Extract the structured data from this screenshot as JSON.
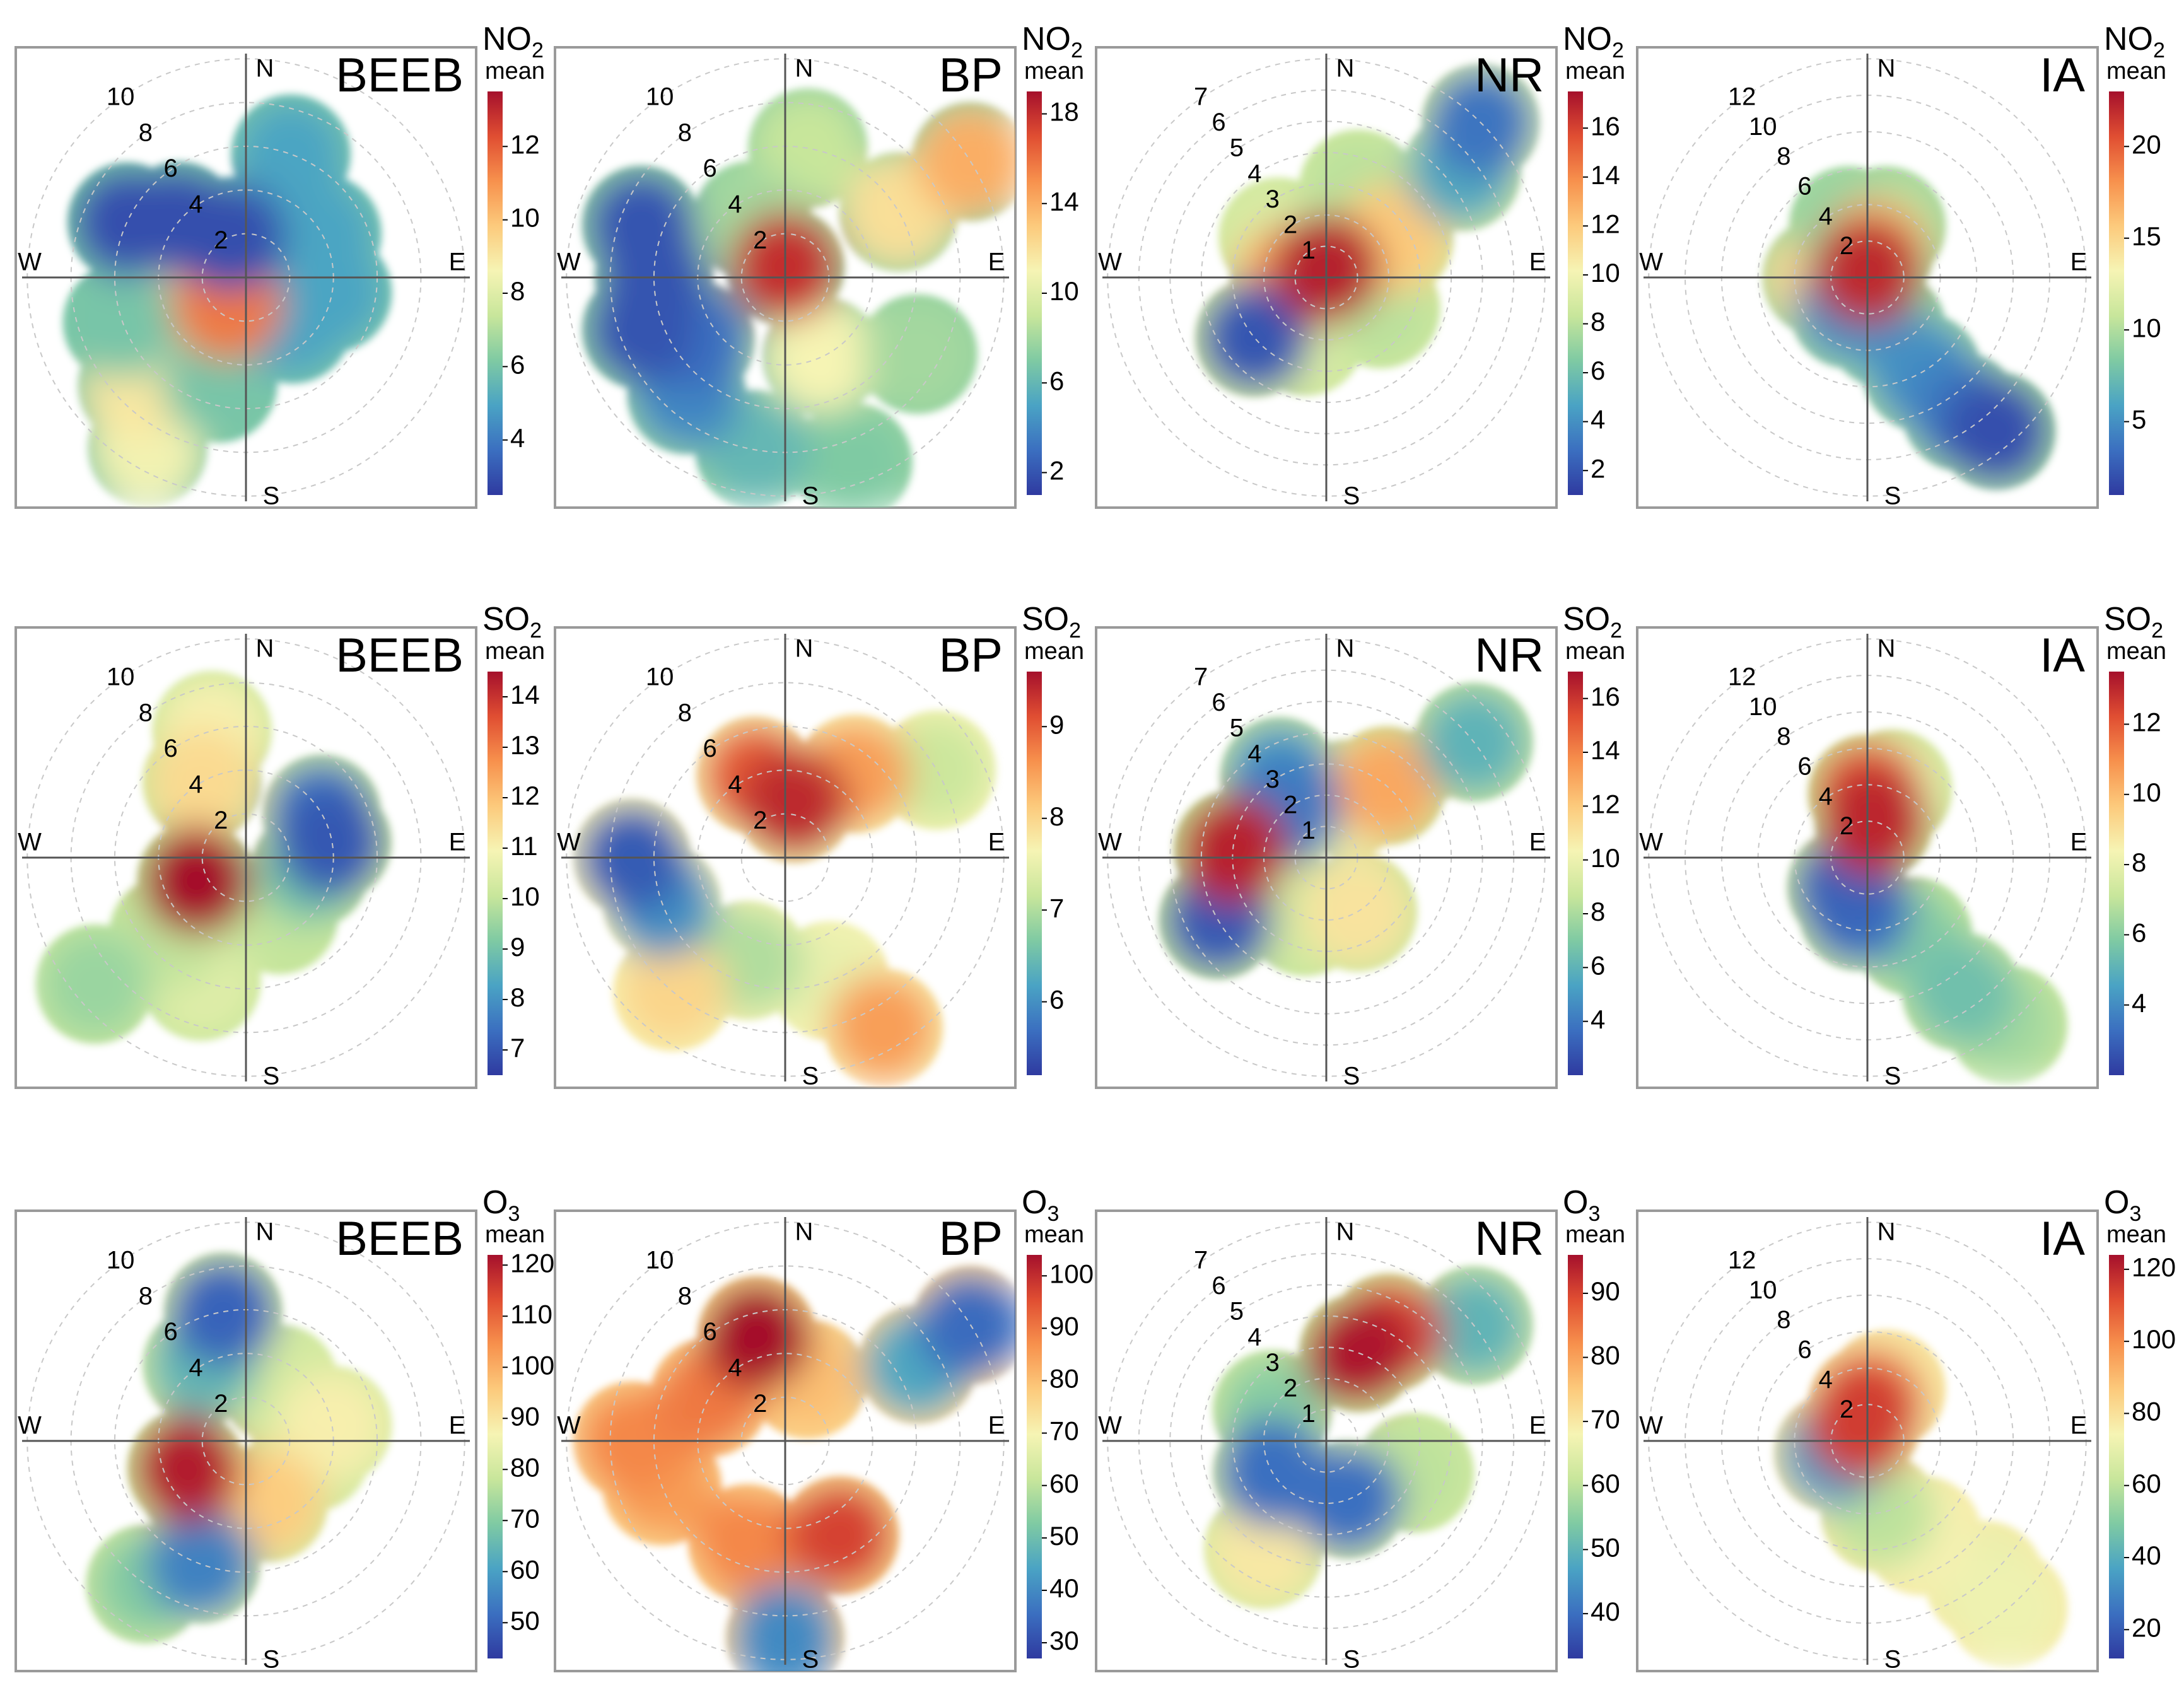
{
  "chart_data": {
    "type": "heatmap",
    "description_kind": "polar plots",
    "rows": [
      {
        "pollutant": "NO",
        "subscript": "2",
        "stat": "mean",
        "panels": [
          {
            "site": "BEEB",
            "radial_labels": [
              "2",
              "4",
              "6",
              "8",
              "10"
            ],
            "radial_max": 10,
            "colorbar_ticks": [
              4,
              6,
              8,
              10,
              12
            ],
            "colorbar_range": [
              2.5,
              13.5
            ],
            "blobs": [
              [
                215,
                1.5,
                11.5
              ],
              [
                235,
                4,
                9
              ],
              [
                225,
                7,
                9
              ],
              [
                210,
                9,
                8.5
              ],
              [
                250,
                6,
                6
              ],
              [
                195,
                5,
                6
              ],
              [
                135,
                3,
                5
              ],
              [
                100,
                4,
                5
              ],
              [
                60,
                4,
                5
              ],
              [
                20,
                6,
                5
              ],
              [
                340,
                2,
                3
              ],
              [
                310,
                4,
                3
              ],
              [
                295,
                6,
                3
              ]
            ]
          },
          {
            "site": "BP",
            "radial_labels": [
              "2",
              "4",
              "6",
              "8",
              "10"
            ],
            "radial_max": 10,
            "colorbar_ticks": [
              2,
              6,
              10,
              14,
              18
            ],
            "colorbar_range": [
              1,
              19
            ],
            "blobs": [
              [
                0,
                0.5,
                18
              ],
              [
                60,
                6,
                12
              ],
              [
                58,
                10,
                14
              ],
              [
                155,
                4,
                11
              ],
              [
                270,
                6,
                2
              ],
              [
                250,
                7,
                2
              ],
              [
                290,
                7,
                2
              ],
              [
                235,
                5,
                3
              ],
              [
                190,
                8,
                6
              ],
              [
                160,
                9,
                7
              ],
              [
                10,
                6,
                9
              ],
              [
                330,
                3,
                8
              ],
              [
                120,
                7,
                8
              ],
              [
                220,
                7,
                4
              ]
            ]
          },
          {
            "site": "NR",
            "radial_labels": [
              "1",
              "2",
              "3",
              "4",
              "5",
              "6",
              "7"
            ],
            "radial_max": 7,
            "colorbar_ticks": [
              2,
              4,
              6,
              8,
              10,
              12,
              14,
              16
            ],
            "colorbar_range": [
              1,
              17.5
            ],
            "blobs": [
              [
                0,
                0.3,
                17
              ],
              [
                265,
                1.2,
                13
              ],
              [
                60,
                2.5,
                12
              ],
              [
                52,
                5.5,
                5
              ],
              [
                45,
                7,
                3
              ],
              [
                230,
                3,
                2
              ],
              [
                200,
                2,
                9
              ],
              [
                20,
                3,
                8
              ],
              [
                120,
                2,
                8
              ],
              [
                310,
                2,
                9
              ]
            ]
          },
          {
            "site": "IA",
            "radial_labels": [
              "2",
              "4",
              "6",
              "8",
              "10",
              "12"
            ],
            "radial_max": 12,
            "colorbar_ticks": [
              5,
              10,
              15,
              20
            ],
            "colorbar_range": [
              1,
              23
            ],
            "blobs": [
              [
                0,
                0.4,
                22
              ],
              [
                15,
                1.5,
                16
              ],
              [
                270,
                2.5,
                15
              ],
              [
                210,
                2,
                5
              ],
              [
                160,
                3,
                8
              ],
              [
                150,
                6,
                5
              ],
              [
                145,
                9,
                4
              ],
              [
                140,
                11,
                2
              ],
              [
                20,
                3,
                10
              ],
              [
                340,
                3,
                9
              ]
            ]
          }
        ]
      },
      {
        "pollutant": "SO",
        "subscript": "2",
        "stat": "mean",
        "panels": [
          {
            "site": "BEEB",
            "radial_labels": [
              "2",
              "4",
              "6",
              "8",
              "10"
            ],
            "radial_max": 10,
            "colorbar_ticks": [
              7,
              8,
              9,
              10,
              11,
              12,
              13,
              14
            ],
            "colorbar_range": [
              6.5,
              14.5
            ],
            "blobs": [
              [
                245,
                2.5,
                14.5
              ],
              [
                225,
                5,
                10
              ],
              [
                330,
                4,
                11.5
              ],
              [
                345,
                6,
                11
              ],
              [
                80,
                4,
                7
              ],
              [
                60,
                4,
                7.5
              ],
              [
                100,
                3,
                9
              ],
              [
                200,
                6,
                10.5
              ],
              [
                230,
                9,
                9.5
              ],
              [
                150,
                3,
                10
              ]
            ]
          },
          {
            "site": "BP",
            "radial_labels": [
              "2",
              "4",
              "6",
              "8",
              "10"
            ],
            "radial_max": 10,
            "colorbar_ticks": [
              6,
              7,
              8,
              9
            ],
            "colorbar_range": [
              5.2,
              9.6
            ],
            "blobs": [
              [
                10,
                2.5,
                9.4
              ],
              [
                340,
                4,
                9
              ],
              [
                40,
                5,
                8.5
              ],
              [
                270,
                7,
                5.5
              ],
              [
                250,
                6,
                6
              ],
              [
                150,
                9,
                8.5
              ],
              [
                160,
                6,
                7.5
              ],
              [
                200,
                5,
                7
              ],
              [
                220,
                8,
                8
              ],
              [
                60,
                8,
                7.2
              ]
            ]
          },
          {
            "site": "NR",
            "radial_labels": [
              "1",
              "2",
              "3",
              "4",
              "5",
              "6",
              "7"
            ],
            "radial_max": 7,
            "colorbar_ticks": [
              4,
              6,
              8,
              10,
              12,
              14,
              16
            ],
            "colorbar_range": [
              2,
              17
            ],
            "blobs": [
              [
                275,
                3,
                16.5
              ],
              [
                240,
                4,
                3
              ],
              [
                320,
                2,
                4
              ],
              [
                330,
                3,
                5
              ],
              [
                40,
                3,
                13
              ],
              [
                52,
                6,
                6
              ],
              [
                20,
                2,
                10
              ],
              [
                150,
                2,
                11
              ],
              [
                200,
                2,
                9
              ]
            ]
          },
          {
            "site": "IA",
            "radial_labels": [
              "2",
              "4",
              "6",
              "8",
              "10",
              "12"
            ],
            "radial_max": 12,
            "colorbar_ticks": [
              4,
              6,
              8,
              10,
              12
            ],
            "colorbar_range": [
              2,
              13.5
            ],
            "blobs": [
              [
                10,
                2,
                13
              ],
              [
                0,
                3.5,
                12
              ],
              [
                215,
                2,
                3
              ],
              [
                190,
                3,
                3.5
              ],
              [
                150,
                5,
                6
              ],
              [
                145,
                9,
                5.5
              ],
              [
                140,
                12,
                6.5
              ],
              [
                20,
                4,
                8
              ]
            ]
          }
        ]
      },
      {
        "pollutant": "O",
        "subscript": "3",
        "stat": "mean",
        "panels": [
          {
            "site": "BEEB",
            "radial_labels": [
              "2",
              "4",
              "6",
              "8",
              "10"
            ],
            "radial_max": 10,
            "colorbar_ticks": [
              50,
              60,
              70,
              80,
              90,
              100,
              110,
              120
            ],
            "colorbar_range": [
              43,
              122
            ],
            "blobs": [
              [
                245,
                3,
                120
              ],
              [
                225,
                3,
                95
              ],
              [
                330,
                4,
                65
              ],
              [
                350,
                6,
                50
              ],
              [
                80,
                4,
                88
              ],
              [
                100,
                3,
                80
              ],
              [
                200,
                6,
                55
              ],
              [
                215,
                8,
                70
              ],
              [
                160,
                3,
                95
              ],
              [
                30,
                3,
                80
              ]
            ]
          },
          {
            "site": "BP",
            "radial_labels": [
              "2",
              "4",
              "6",
              "8",
              "10"
            ],
            "radial_max": 10,
            "colorbar_ticks": [
              30,
              40,
              50,
              60,
              70,
              80,
              90,
              100
            ],
            "colorbar_range": [
              27,
              104
            ],
            "blobs": [
              [
                345,
                5,
                104
              ],
              [
                270,
                7,
                88
              ],
              [
                250,
                6,
                85
              ],
              [
                150,
                5,
                97
              ],
              [
                200,
                5,
                88
              ],
              [
                60,
                7,
                45
              ],
              [
                58,
                10,
                35
              ],
              [
                180,
                9,
                40
              ],
              [
                20,
                3,
                80
              ],
              [
                300,
                4,
                90
              ]
            ]
          },
          {
            "site": "NR",
            "radial_labels": [
              "1",
              "2",
              "3",
              "4",
              "5",
              "6",
              "7"
            ],
            "radial_max": 7,
            "colorbar_ticks": [
              40,
              50,
              60,
              70,
              80,
              90
            ],
            "colorbar_range": [
              33,
              96
            ],
            "blobs": [
              [
                20,
                3,
                95
              ],
              [
                30,
                4,
                90
              ],
              [
                240,
                2,
                40
              ],
              [
                160,
                2,
                40
              ],
              [
                52,
                6,
                50
              ],
              [
                210,
                4,
                70
              ],
              [
                110,
                3,
                60
              ],
              [
                300,
                2,
                55
              ]
            ]
          },
          {
            "site": "IA",
            "radial_labels": [
              "2",
              "4",
              "6",
              "8",
              "10",
              "12"
            ],
            "radial_max": 12,
            "colorbar_ticks": [
              20,
              40,
              60,
              80,
              100,
              120
            ],
            "colorbar_range": [
              12,
              124
            ],
            "blobs": [
              [
                0,
                2,
                110
              ],
              [
                340,
                1,
                115
              ],
              [
                250,
                2,
                35
              ],
              [
                150,
                6,
                75
              ],
              [
                140,
                10,
                70
              ],
              [
                140,
                12,
                72
              ],
              [
                170,
                4,
                60
              ],
              [
                20,
                3,
                80
              ]
            ]
          }
        ]
      }
    ],
    "cardinal_labels": {
      "n": "N",
      "e": "E",
      "s": "S",
      "w": "W"
    },
    "colormap": [
      "#2f3aa0",
      "#3b6fc0",
      "#4aa3c4",
      "#7fcaa3",
      "#c8e69b",
      "#f6f4b4",
      "#fcca7c",
      "#f7914d",
      "#e04e32",
      "#a5102c"
    ]
  }
}
